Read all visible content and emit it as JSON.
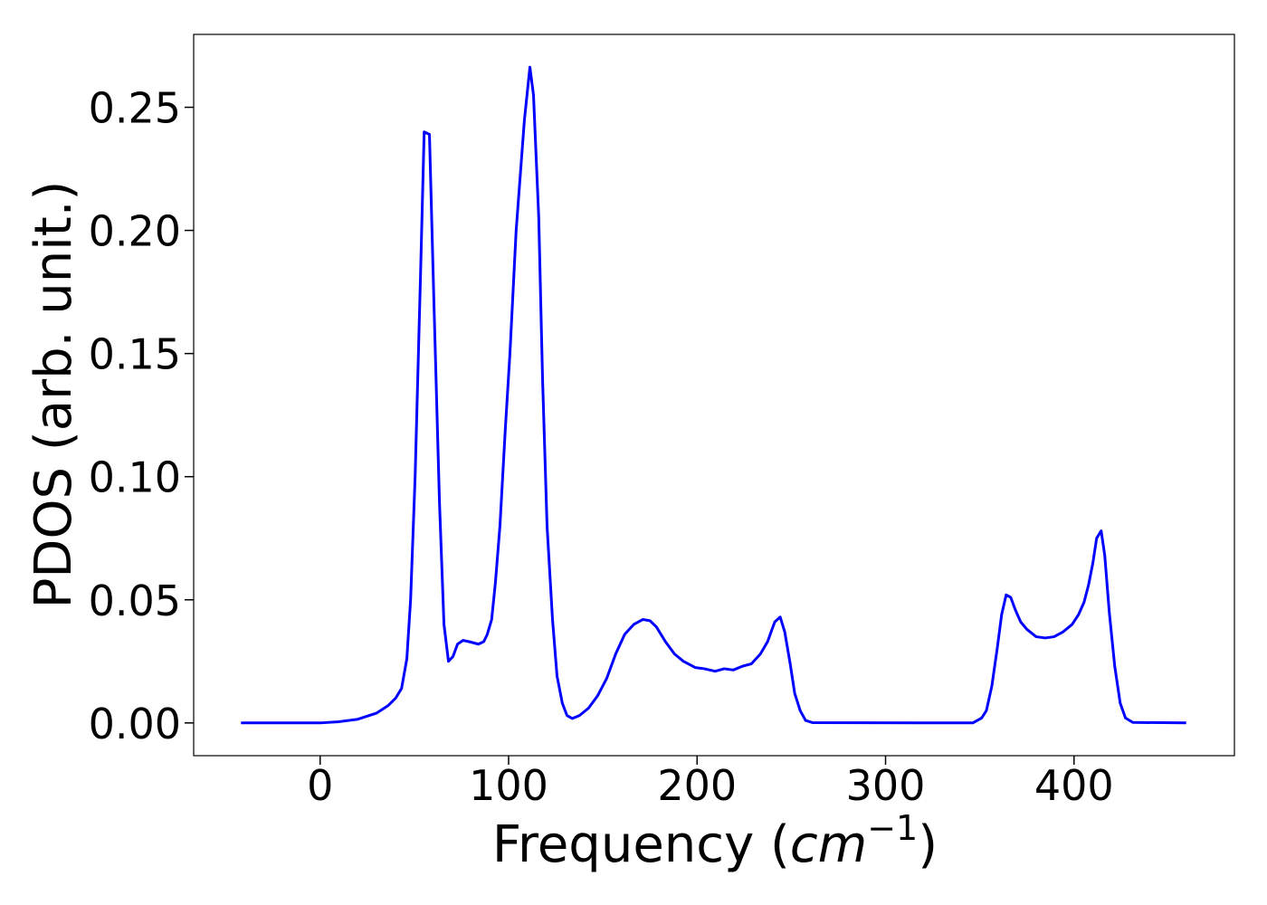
{
  "chart_data": {
    "type": "line",
    "xlabel": [
      "Frequency (",
      "cm",
      "−1",
      ")"
    ],
    "ylabel": "PDOS (arb. unit.)",
    "xlim": [
      -67.1,
      485.1
    ],
    "ylim": [
      -0.0133,
      0.2796
    ],
    "xticks": [
      0,
      100,
      200,
      300,
      400
    ],
    "yticks": [
      {
        "value": 0,
        "label": "0.00"
      },
      {
        "value": 0.05,
        "label": "0.05"
      },
      {
        "value": 0.1,
        "label": "0.10"
      },
      {
        "value": 0.15,
        "label": "0.15"
      },
      {
        "value": 0.2,
        "label": "0.20"
      },
      {
        "value": 0.25,
        "label": "0.25"
      }
    ],
    "grid": false,
    "x": [
      -42,
      0,
      10,
      20,
      30,
      36,
      40,
      43.2,
      46,
      48,
      50.4,
      53.2,
      55.2,
      58,
      60.4,
      63.3,
      65.7,
      68.1,
      70.5,
      72.9,
      75.8,
      79,
      84,
      86.8,
      88.7,
      91,
      93,
      95.4,
      98.3,
      100.7,
      104,
      108.4,
      111.3,
      113.2,
      116,
      118,
      120.4,
      123.3,
      125.7,
      128.5,
      131,
      133.8,
      137.6,
      142.4,
      147.2,
      152,
      156.8,
      161.6,
      166.4,
      171.2,
      175,
      178.4,
      183.2,
      188,
      192.8,
      199,
      203.8,
      209.6,
      214.4,
      219.2,
      224,
      228.8,
      233.6,
      237.4,
      241.2,
      244.1,
      246.5,
      249.4,
      251.8,
      254.7,
      257.6,
      261.4,
      346.3,
      351,
      353.5,
      356.4,
      359.2,
      361.6,
      364,
      366.4,
      368.8,
      371.7,
      375,
      379.9,
      384.7,
      389.4,
      394.2,
      399,
      402.4,
      405.3,
      407.7,
      410,
      412,
      414.4,
      416.3,
      418.7,
      421.6,
      424.5,
      427.3,
      431.2,
      459.5
    ],
    "series": [
      {
        "color": "#0000ff",
        "values": [
          0,
          0,
          0.0005,
          0.0015,
          0.004,
          0.007,
          0.01,
          0.014,
          0.026,
          0.05,
          0.1,
          0.18,
          0.24,
          0.239,
          0.17,
          0.09,
          0.04,
          0.025,
          0.027,
          0.032,
          0.0335,
          0.033,
          0.032,
          0.033,
          0.036,
          0.042,
          0.057,
          0.08,
          0.12,
          0.15,
          0.2,
          0.245,
          0.2663,
          0.255,
          0.205,
          0.14,
          0.08,
          0.042,
          0.019,
          0.008,
          0.003,
          0.0018,
          0.003,
          0.006,
          0.011,
          0.018,
          0.028,
          0.036,
          0.04,
          0.042,
          0.0415,
          0.039,
          0.033,
          0.028,
          0.025,
          0.0225,
          0.022,
          0.021,
          0.022,
          0.0215,
          0.023,
          0.024,
          0.028,
          0.033,
          0.041,
          0.043,
          0.037,
          0.024,
          0.012,
          0.005,
          0.001,
          0.0001,
          0,
          0.002,
          0.005,
          0.015,
          0.03,
          0.044,
          0.052,
          0.051,
          0.046,
          0.041,
          0.038,
          0.035,
          0.0345,
          0.035,
          0.037,
          0.04,
          0.044,
          0.049,
          0.056,
          0.065,
          0.075,
          0.078,
          0.068,
          0.045,
          0.023,
          0.008,
          0.002,
          0.0002,
          0
        ]
      }
    ]
  }
}
